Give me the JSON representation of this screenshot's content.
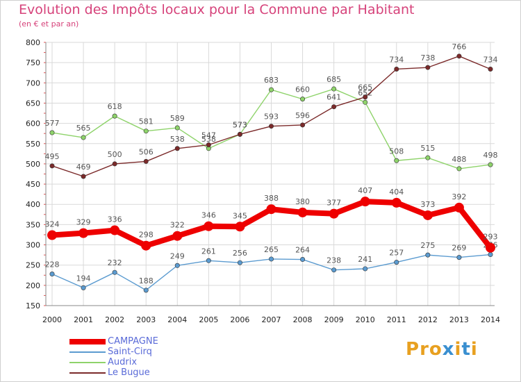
{
  "title": "Evolution des Impôts locaux pour la Commune par Habitant",
  "subtitle": "(en € et par an)",
  "logo": {
    "text": "Proxiti",
    "colors": [
      "#e8a020",
      "#e8a020",
      "#e8a020",
      "#3a8fd0",
      "#e8a020",
      "#3a8fd0",
      "#e8a020"
    ]
  },
  "chart_data": {
    "type": "line",
    "title": "Evolution des Impôts locaux pour la Commune par Habitant",
    "subtitle": "(en € et par an)",
    "xlabel": "",
    "ylabel": "",
    "x": [
      "2000",
      "2001",
      "2002",
      "2003",
      "2004",
      "2005",
      "2006",
      "2007",
      "2008",
      "2009",
      "2010",
      "2011",
      "2012",
      "2013",
      "2014"
    ],
    "ylim": [
      150,
      800
    ],
    "yticks": [
      150,
      200,
      250,
      300,
      350,
      400,
      450,
      500,
      550,
      600,
      650,
      700,
      750,
      800
    ],
    "grid": true,
    "legend_position": "bottom-left",
    "series": [
      {
        "name": "CAMPAGNE",
        "color": "#ee0000",
        "values": [
          324,
          329,
          336,
          298,
          322,
          346,
          345,
          388,
          380,
          377,
          407,
          404,
          373,
          392,
          293
        ]
      },
      {
        "name": "Saint-Cirq",
        "color": "#5b9bd0",
        "values": [
          228,
          194,
          232,
          188,
          249,
          261,
          256,
          265,
          264,
          238,
          241,
          257,
          275,
          269,
          276
        ]
      },
      {
        "name": "Audrix",
        "color": "#8ed36a",
        "values": [
          577,
          565,
          618,
          581,
          589,
          538,
          573,
          683,
          660,
          685,
          652,
          508,
          515,
          488,
          498
        ]
      },
      {
        "name": "Le Bugue",
        "color": "#7b2a2a",
        "values": [
          495,
          469,
          500,
          506,
          538,
          547,
          573,
          593,
          596,
          641,
          665,
          734,
          738,
          766,
          734
        ]
      }
    ]
  }
}
